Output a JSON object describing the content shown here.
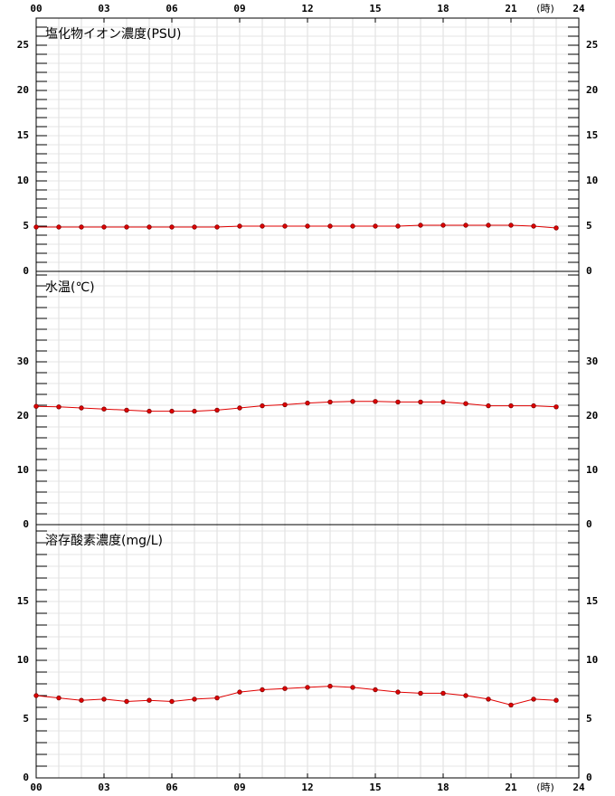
{
  "chart_data": [
    {
      "type": "line",
      "title": "塩化物イオン濃度(PSU)",
      "xlabel": "(時)",
      "x": [
        0,
        1,
        2,
        3,
        4,
        5,
        6,
        7,
        8,
        9,
        10,
        11,
        12,
        13,
        14,
        15,
        16,
        17,
        18,
        19,
        20,
        21,
        22,
        23
      ],
      "values": [
        4.9,
        4.9,
        4.9,
        4.9,
        4.9,
        4.9,
        4.9,
        4.9,
        4.9,
        5.0,
        5.0,
        5.0,
        5.0,
        5.0,
        5.0,
        5.0,
        5.0,
        5.1,
        5.1,
        5.1,
        5.1,
        5.1,
        5.0,
        4.8
      ],
      "color": "#e00000",
      "xlim": [
        0,
        24
      ],
      "xticks": [
        {
          "value": 0,
          "label": "00"
        },
        {
          "value": 3,
          "label": "03"
        },
        {
          "value": 6,
          "label": "06"
        },
        {
          "value": 9,
          "label": "09"
        },
        {
          "value": 12,
          "label": "12"
        },
        {
          "value": 15,
          "label": "15"
        },
        {
          "value": 18,
          "label": "18"
        },
        {
          "value": 21,
          "label": "21"
        },
        {
          "value": 24,
          "label": "24"
        }
      ],
      "ylim": [
        0,
        28
      ],
      "yticks": [
        0,
        5,
        10,
        15,
        20,
        25
      ],
      "minor_step": 1,
      "grid": true
    },
    {
      "type": "line",
      "title": "水温(℃)",
      "x": [
        0,
        1,
        2,
        3,
        4,
        5,
        6,
        7,
        8,
        9,
        10,
        11,
        12,
        13,
        14,
        15,
        16,
        17,
        18,
        19,
        20,
        21,
        22,
        23
      ],
      "values": [
        21.8,
        21.7,
        21.5,
        21.3,
        21.1,
        20.9,
        20.9,
        20.9,
        21.1,
        21.5,
        21.9,
        22.1,
        22.4,
        22.6,
        22.7,
        22.7,
        22.6,
        22.6,
        22.6,
        22.3,
        21.9,
        21.9,
        21.9,
        21.7
      ],
      "color": "#e00000",
      "xlim": [
        0,
        24
      ],
      "ylim": [
        0,
        46.67
      ],
      "yticks": [
        0,
        10,
        20,
        30
      ],
      "minor_step": 2,
      "grid": true
    },
    {
      "type": "line",
      "title": "溶存酸素濃度(mg/L)",
      "x": [
        0,
        1,
        2,
        3,
        4,
        5,
        6,
        7,
        8,
        9,
        10,
        11,
        12,
        13,
        14,
        15,
        16,
        17,
        18,
        19,
        20,
        21,
        22,
        23
      ],
      "values": [
        7.0,
        6.8,
        6.6,
        6.7,
        6.5,
        6.6,
        6.5,
        6.7,
        6.8,
        7.3,
        7.5,
        7.6,
        7.7,
        7.8,
        7.7,
        7.5,
        7.3,
        7.2,
        7.2,
        7.0,
        6.7,
        6.2,
        6.7,
        6.6
      ],
      "color": "#e00000",
      "xlim": [
        0,
        24
      ],
      "ylim": [
        0,
        21.54
      ],
      "yticks": [
        0,
        5,
        10,
        15
      ],
      "minor_step": 1,
      "grid": true
    }
  ]
}
